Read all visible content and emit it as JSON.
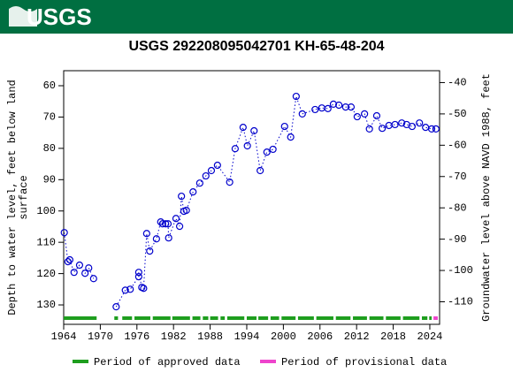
{
  "header": {
    "logo": "USGS"
  },
  "chart_data": {
    "type": "scatter-line",
    "title": "USGS 292208095042701 KH-65-48-204",
    "y_label_lines": [
      "Depth to water level, feet below land",
      "surface"
    ],
    "y2_label": "Groundwater level above NAVD 1988, feet",
    "xlim": [
      1964,
      2025.6
    ],
    "xticks": [
      1964,
      1970,
      1976,
      1982,
      1988,
      1994,
      2000,
      2006,
      2012,
      2018,
      2024
    ],
    "ylim": [
      55.2,
      136.2
    ],
    "yticks": [
      60,
      70,
      80,
      90,
      100,
      110,
      120,
      130
    ],
    "y_inverted": true,
    "y2lim": [
      -36.2,
      -117.2
    ],
    "y2ticks": [
      -40,
      -50,
      -60,
      -70,
      -80,
      -90,
      -100,
      -110
    ],
    "series": [
      {
        "color": "#0000cc",
        "x": [
          1964.1,
          1964.7,
          1965.0,
          1965.7,
          1966.6,
          1967.5,
          1968.1,
          1968.9,
          null,
          1972.6,
          1974.1,
          1974.9,
          1976.3,
          1976.3,
          1976.8,
          1977.1,
          1977.6,
          1978.1,
          1979.2,
          1979.9,
          1980.2,
          1980.7,
          1981.1,
          1981.2,
          1982.4,
          1983.0,
          1983.3,
          1983.7,
          1984.1,
          1985.2,
          1986.3,
          1987.3,
          1988.2,
          1989.2,
          1991.2,
          1992.1,
          1993.4,
          1994.1,
          1995.2,
          1996.2,
          1997.3,
          1998.3,
          2000.2,
          2001.2,
          2002.1,
          2003.1,
          2005.2,
          2006.3,
          2007.3,
          2008.2,
          2009.1,
          2010.2,
          2011.1,
          2012.1,
          2013.3,
          2014.1,
          2015.3,
          2016.2,
          2017.3,
          2018.3,
          2019.4,
          2020.2,
          2021.1,
          2022.3,
          2023.3,
          2024.3,
          2025.0
        ],
        "values": [
          106.9,
          116.2,
          115.6,
          119.6,
          117.3,
          119.9,
          118.2,
          121.6,
          null,
          130.6,
          125.3,
          125.0,
          121.0,
          119.6,
          124.4,
          124.7,
          107.2,
          112.8,
          108.9,
          103.5,
          104.1,
          104.1,
          104.1,
          108.6,
          102.4,
          104.9,
          95.3,
          100.1,
          99.8,
          93.9,
          91.1,
          88.8,
          87.1,
          85.4,
          90.8,
          80.1,
          73.3,
          79.2,
          74.4,
          87.1,
          81.2,
          80.3,
          73.0,
          76.4,
          63.4,
          69.0,
          67.6,
          67.1,
          67.3,
          65.9,
          66.2,
          66.8,
          66.8,
          69.9,
          69.0,
          73.8,
          69.6,
          73.6,
          72.7,
          72.4,
          71.9,
          72.4,
          73.0,
          71.9,
          73.3,
          73.8,
          73.8
        ]
      }
    ],
    "periods": [
      {
        "name": "Period of approved data",
        "color": "#1e9e1e",
        "ranges": [
          [
            1964,
            1969.4
          ],
          [
            1972.3,
            1972.9
          ],
          [
            1973.6,
            1975.2
          ],
          [
            1975.6,
            1978.2
          ],
          [
            1978.6,
            1981.5
          ],
          [
            1981.8,
            1984.7
          ],
          [
            1985.1,
            1986.4
          ],
          [
            1986.8,
            1987.7
          ],
          [
            1988.0,
            1989.3
          ],
          [
            1989.7,
            1990.4
          ],
          [
            1990.8,
            1993.6
          ],
          [
            1994.0,
            1995.6
          ],
          [
            1995.9,
            1997.5
          ],
          [
            1997.9,
            1999.3
          ],
          [
            1999.7,
            2002.0
          ],
          [
            2002.4,
            2005.0
          ],
          [
            2005.4,
            2008.2
          ],
          [
            2008.6,
            2011.0
          ],
          [
            2011.4,
            2013.7
          ],
          [
            2014.1,
            2016.4
          ],
          [
            2016.8,
            2019.2
          ],
          [
            2019.6,
            2022.3
          ],
          [
            2022.7,
            2023.6
          ],
          [
            2023.9,
            2024.3
          ]
        ]
      },
      {
        "name": "Period of provisional data",
        "color": "#ee44cc",
        "ranges": [
          [
            2024.6,
            2025.3
          ]
        ]
      }
    ]
  }
}
